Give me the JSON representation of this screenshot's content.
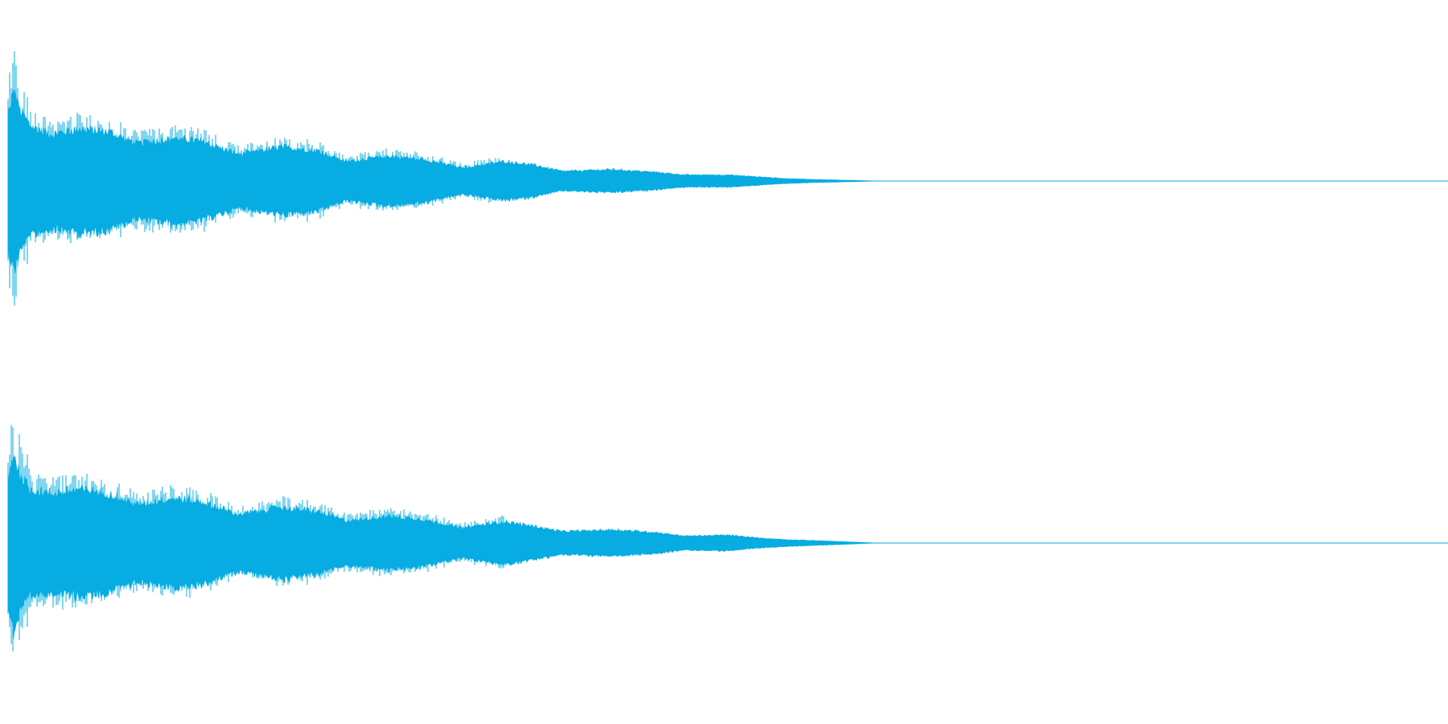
{
  "waveform": {
    "color": "#06ace2",
    "background": "#ffffff",
    "channels": [
      {
        "name": "channel-1",
        "envelope": [
          [
            0.0,
            0.75
          ],
          [
            0.004,
            1.0
          ],
          [
            0.008,
            0.8
          ],
          [
            0.015,
            0.62
          ],
          [
            0.03,
            0.52
          ],
          [
            0.05,
            0.58
          ],
          [
            0.07,
            0.55
          ],
          [
            0.09,
            0.42
          ],
          [
            0.115,
            0.48
          ],
          [
            0.135,
            0.44
          ],
          [
            0.16,
            0.3
          ],
          [
            0.19,
            0.38
          ],
          [
            0.215,
            0.34
          ],
          [
            0.235,
            0.22
          ],
          [
            0.265,
            0.28
          ],
          [
            0.29,
            0.24
          ],
          [
            0.315,
            0.15
          ],
          [
            0.345,
            0.22
          ],
          [
            0.365,
            0.18
          ],
          [
            0.385,
            0.11
          ],
          [
            0.42,
            0.13
          ],
          [
            0.45,
            0.1
          ],
          [
            0.47,
            0.07
          ],
          [
            0.5,
            0.07
          ],
          [
            0.52,
            0.05
          ],
          [
            0.54,
            0.03
          ],
          [
            0.56,
            0.02
          ],
          [
            0.6,
            0.005
          ],
          [
            0.603,
            0.0
          ],
          [
            1.0,
            0.0
          ]
        ]
      },
      {
        "name": "channel-2",
        "envelope": [
          [
            0.0,
            0.7
          ],
          [
            0.004,
            1.0
          ],
          [
            0.008,
            0.78
          ],
          [
            0.015,
            0.6
          ],
          [
            0.03,
            0.55
          ],
          [
            0.05,
            0.6
          ],
          [
            0.07,
            0.55
          ],
          [
            0.09,
            0.43
          ],
          [
            0.115,
            0.5
          ],
          [
            0.135,
            0.46
          ],
          [
            0.16,
            0.32
          ],
          [
            0.19,
            0.4
          ],
          [
            0.215,
            0.35
          ],
          [
            0.235,
            0.25
          ],
          [
            0.265,
            0.3
          ],
          [
            0.29,
            0.26
          ],
          [
            0.315,
            0.17
          ],
          [
            0.345,
            0.24
          ],
          [
            0.365,
            0.19
          ],
          [
            0.385,
            0.13
          ],
          [
            0.42,
            0.15
          ],
          [
            0.45,
            0.12
          ],
          [
            0.47,
            0.08
          ],
          [
            0.5,
            0.09
          ],
          [
            0.52,
            0.06
          ],
          [
            0.54,
            0.04
          ],
          [
            0.56,
            0.03
          ],
          [
            0.6,
            0.005
          ],
          [
            0.603,
            0.0
          ],
          [
            1.0,
            0.0
          ]
        ]
      }
    ]
  }
}
